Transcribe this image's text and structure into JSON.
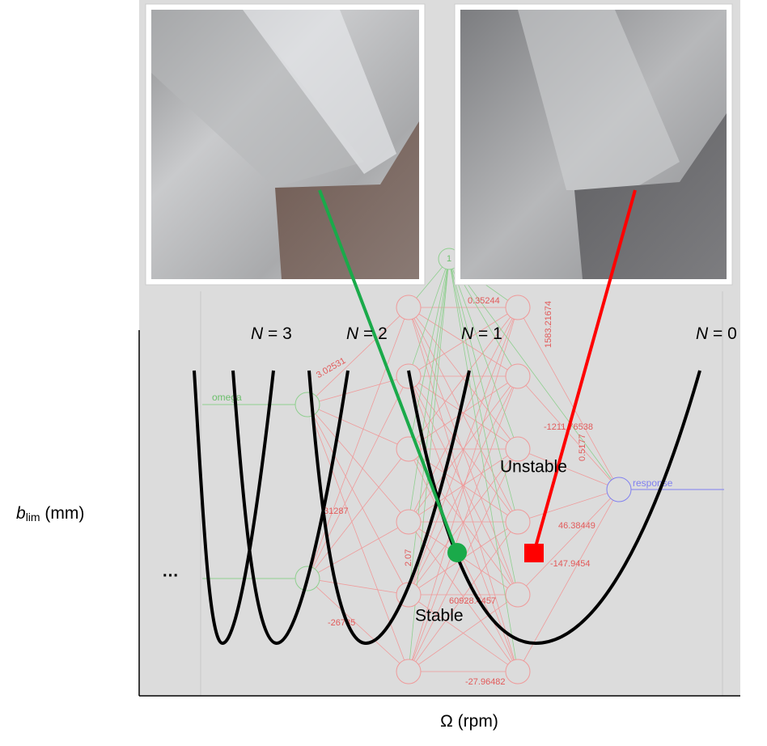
{
  "figure": {
    "lobe_labels": [
      {
        "var": "N",
        "rest": " = 3"
      },
      {
        "var": "N",
        "rest": " = 2"
      },
      {
        "var": "N",
        "rest": " = 1"
      },
      {
        "var": "N",
        "rest": " = 0"
      }
    ],
    "unstable": "Unstable",
    "stable": "Stable",
    "y_axis_label": {
      "symbol": "b",
      "subscript": "lim",
      "unit": " (mm)"
    },
    "x_axis_label": {
      "symbol": "Ω",
      "unit": " (rpm)"
    },
    "ellipsis": "…"
  },
  "network": {
    "input": "omega",
    "output": "response",
    "bias": "1",
    "weights": [
      "0.35244",
      "1583.21674",
      "-1211.76538",
      "0.5177",
      "46.38449",
      "-147.9454",
      "-27.96482",
      "60928.4457",
      "3.02531",
      "2.07",
      "-26785",
      "31287"
    ]
  }
}
